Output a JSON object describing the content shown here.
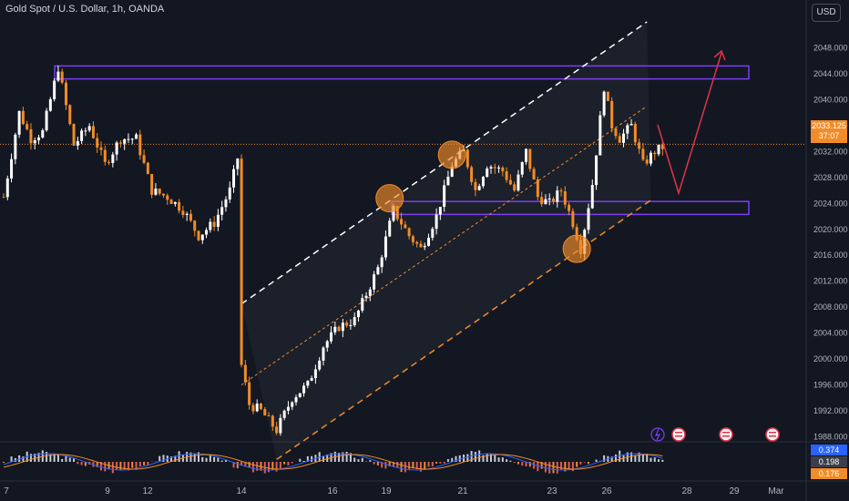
{
  "header": {
    "symbol_title": "Gold Spot / U.S. Dollar, 1h, OANDA",
    "currency_button": "USD"
  },
  "price_tag": {
    "price": "2033.125",
    "countdown": "37:07"
  },
  "oscillator_tags": [
    {
      "value": "0.374",
      "color": "#2962ff"
    },
    {
      "value": "0.198",
      "color": "#3c3f4a"
    },
    {
      "value": "0.176",
      "color": "#f28c28"
    }
  ],
  "colors": {
    "background": "#131722",
    "up_candle": "#ffffff",
    "down_candle": "#f28c28",
    "zone_border": "#7b3ff2",
    "forecast_arrow": "#e0334a",
    "channel_upper": "#ffffff",
    "channel_lower": "#f28c28",
    "circle_fill": "#f28c28"
  },
  "chart_data": {
    "type": "candlestick",
    "symbol": "Gold Spot / U.S. Dollar",
    "timeframe": "1h",
    "ylim": [
      1984,
      2052
    ],
    "y_ticks": [
      1988,
      1992,
      1996,
      2000,
      2004,
      2008,
      2012,
      2016,
      2020,
      2024,
      2028,
      2032,
      2036,
      2040,
      2044,
      2048
    ],
    "x_ticks": [
      "7",
      "9",
      "12",
      "14",
      "16",
      "19",
      "21",
      "23",
      "26",
      "28",
      "29",
      "Mar"
    ],
    "last_price": 2033.125,
    "price_path": [
      [
        0,
        2025
      ],
      [
        4,
        2038
      ],
      [
        7,
        2034
      ],
      [
        10,
        2035
      ],
      [
        14,
        2045
      ],
      [
        18,
        2033
      ],
      [
        22,
        2036
      ],
      [
        26,
        2030
      ],
      [
        30,
        2034
      ],
      [
        34,
        2034
      ],
      [
        38,
        2026
      ],
      [
        42,
        2025
      ],
      [
        46,
        2023
      ],
      [
        50,
        2019
      ],
      [
        54,
        2021
      ],
      [
        58,
        2026
      ],
      [
        60,
        2031
      ],
      [
        61,
        1999
      ],
      [
        63,
        1993
      ],
      [
        66,
        1992
      ],
      [
        70,
        1989
      ],
      [
        74,
        1994
      ],
      [
        78,
        1996
      ],
      [
        82,
        2002
      ],
      [
        86,
        2005
      ],
      [
        90,
        2006
      ],
      [
        93,
        2010
      ],
      [
        96,
        2014
      ],
      [
        100,
        2023
      ],
      [
        104,
        2019
      ],
      [
        107,
        2017
      ],
      [
        111,
        2022
      ],
      [
        115,
        2030
      ],
      [
        118,
        2032
      ],
      [
        121,
        2026
      ],
      [
        124,
        2030
      ],
      [
        128,
        2029
      ],
      [
        131,
        2026
      ],
      [
        134,
        2032
      ],
      [
        137,
        2025
      ],
      [
        140,
        2024
      ],
      [
        143,
        2026
      ],
      [
        146,
        2021
      ],
      [
        148,
        2017
      ],
      [
        151,
        2027
      ],
      [
        154,
        2042
      ],
      [
        156,
        2036
      ],
      [
        158,
        2034
      ],
      [
        161,
        2036
      ],
      [
        164,
        2030
      ],
      [
        167,
        2032
      ],
      [
        170,
        2033
      ]
    ],
    "supply_zone": [
      2043.2,
      2045.2
    ],
    "demand_zone": [
      2022.3,
      2024.3
    ],
    "channel": {
      "upper_dashed": [
        [
          61,
          2008.5
        ],
        [
          165,
          2052
        ]
      ],
      "mid_dotted": [
        [
          61,
          1996
        ],
        [
          165,
          2039
        ]
      ],
      "lower_dashed": [
        [
          70,
          1984.5
        ],
        [
          166,
          2024.5
        ]
      ]
    },
    "touch_points": [
      [
        99,
        2024.8
      ],
      [
        115,
        2031.5
      ],
      [
        147,
        2017
      ]
    ],
    "forecast_path": [
      [
        167,
        2033
      ],
      [
        172,
        2024
      ],
      [
        185,
        2045
      ]
    ],
    "oscillator": {
      "last_macd": 0.374,
      "last_histogram": 0.198,
      "last_signal": 0.176
    },
    "event_icons": [
      "lightning",
      "us-flag",
      "us-flag",
      "us-flag"
    ]
  }
}
